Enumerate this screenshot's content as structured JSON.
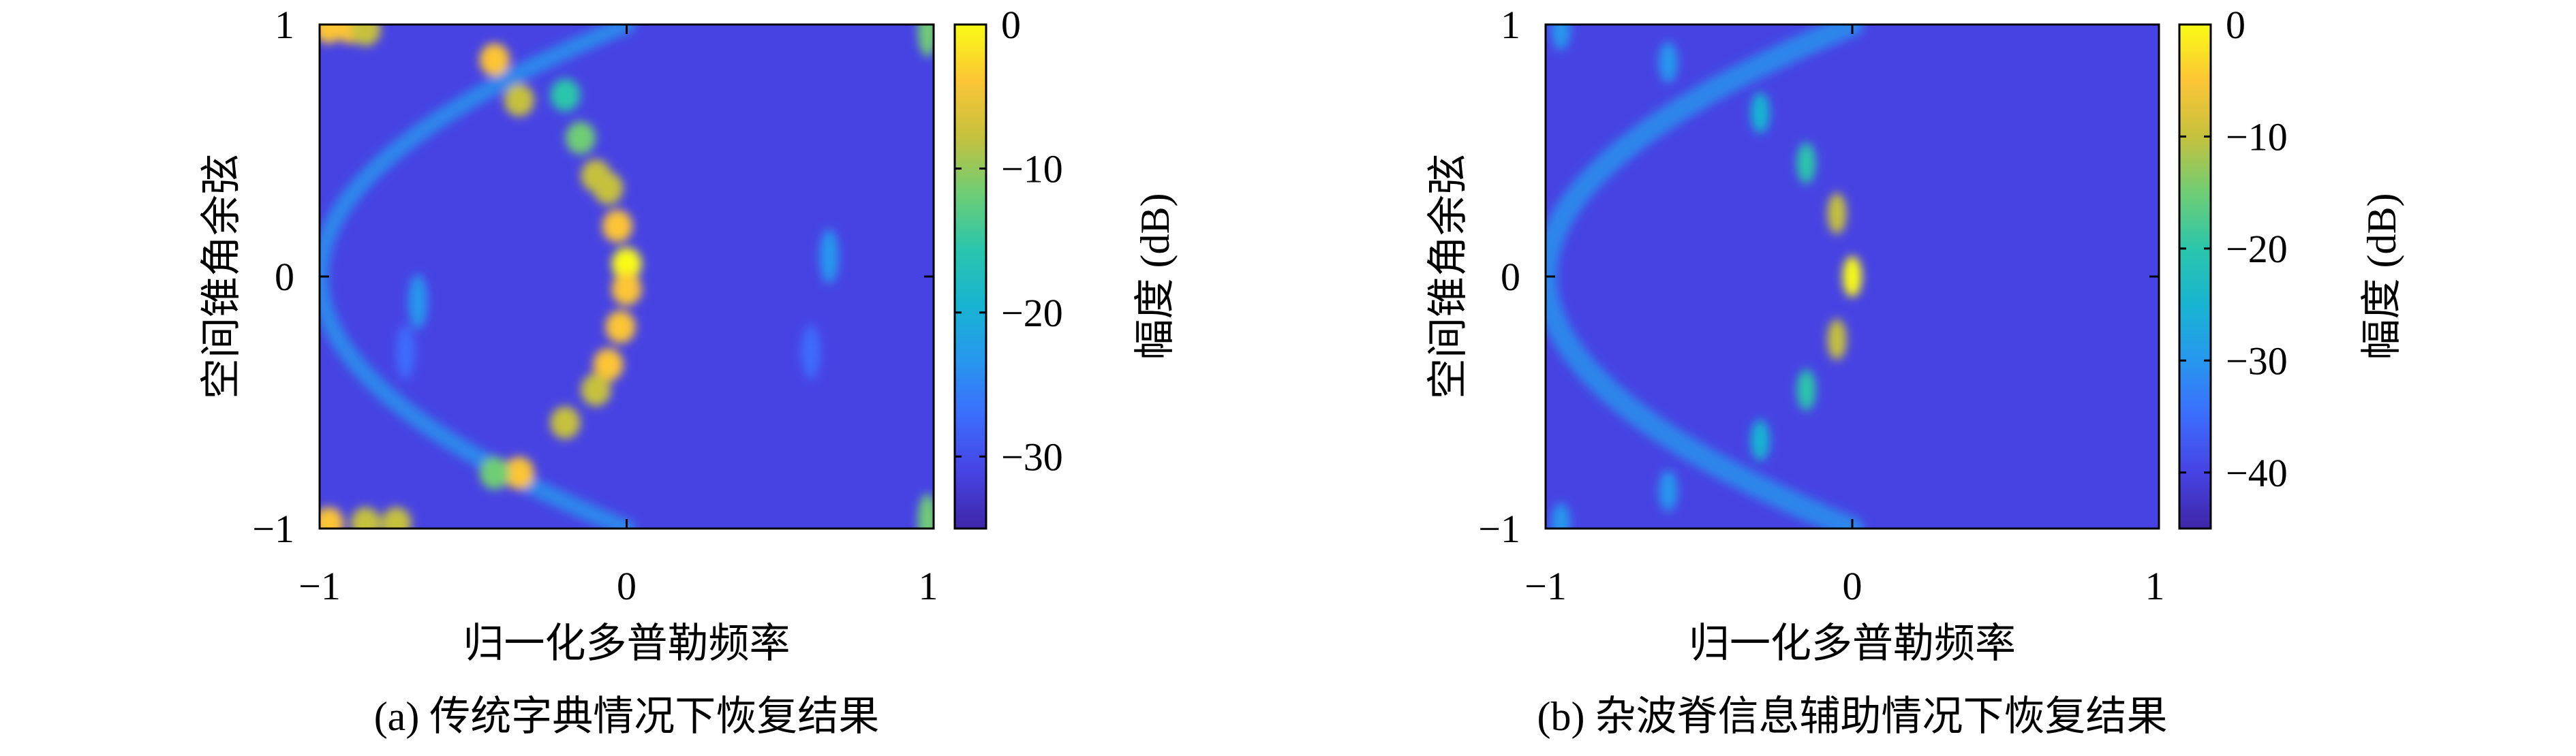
{
  "colormap": [
    "#3e26a8",
    "#4743e3",
    "#3c6cfd",
    "#2797ee",
    "#18b4d2",
    "#2bc6ab",
    "#6fcd74",
    "#c6c13d",
    "#fcc536",
    "#f9fb15"
  ],
  "chart_data": [
    {
      "type": "heatmap",
      "caption": "(a) 传统字典情况下恢复结果",
      "xlabel": "归一化多普勒频率",
      "ylabel": "空间锥角余弦",
      "xlim": [
        -1,
        1
      ],
      "ylim": [
        -1,
        1
      ],
      "xticks": [
        "−1",
        "0",
        "1"
      ],
      "yticks": [
        "−1",
        "0",
        "1"
      ],
      "colorbar": {
        "label": "幅度 (dB)",
        "range": [
          -35,
          0
        ],
        "ticks": [
          "0",
          "−10",
          "−20",
          "−30"
        ],
        "tick_values": [
          0,
          -10,
          -20,
          -30
        ]
      },
      "background_db": -32,
      "ridge": {
        "description_curve": "x = -(1 - y^2)",
        "points": [
          {
            "x": -0.97,
            "y": 0.99,
            "db": -3
          },
          {
            "x": -0.9,
            "y": 0.99,
            "db": -5
          },
          {
            "x": -0.85,
            "y": 0.98,
            "db": -8
          },
          {
            "x": -0.43,
            "y": 0.86,
            "db": -3
          },
          {
            "x": -0.35,
            "y": 0.7,
            "db": -8
          },
          {
            "x": -0.2,
            "y": 0.72,
            "db": -15
          },
          {
            "x": -0.15,
            "y": 0.55,
            "db": -10
          },
          {
            "x": -0.1,
            "y": 0.4,
            "db": -8
          },
          {
            "x": -0.06,
            "y": 0.35,
            "db": -6
          },
          {
            "x": -0.03,
            "y": 0.2,
            "db": -5
          },
          {
            "x": 0.0,
            "y": 0.05,
            "db": -1
          },
          {
            "x": 0.0,
            "y": -0.05,
            "db": -2
          },
          {
            "x": -0.02,
            "y": -0.2,
            "db": -4
          },
          {
            "x": -0.06,
            "y": -0.35,
            "db": -5
          },
          {
            "x": -0.1,
            "y": -0.45,
            "db": -9
          },
          {
            "x": -0.2,
            "y": -0.58,
            "db": -8
          },
          {
            "x": -0.35,
            "y": -0.78,
            "db": -4
          },
          {
            "x": -0.43,
            "y": -0.78,
            "db": -12
          },
          {
            "x": -0.97,
            "y": -0.98,
            "db": -4
          },
          {
            "x": -0.85,
            "y": -0.98,
            "db": -7
          },
          {
            "x": -0.75,
            "y": -0.98,
            "db": -9
          }
        ]
      },
      "spurs": [
        {
          "x": -0.68,
          "y": -0.1,
          "db": -23
        },
        {
          "x": -0.72,
          "y": -0.3,
          "db": -27
        },
        {
          "x": 0.66,
          "y": 0.08,
          "db": -23
        },
        {
          "x": 0.6,
          "y": -0.3,
          "db": -27
        },
        {
          "x": 0.98,
          "y": 0.98,
          "db": -12
        },
        {
          "x": 0.98,
          "y": -0.97,
          "db": -12
        }
      ]
    },
    {
      "type": "heatmap",
      "caption": "(b) 杂波脊信息辅助情况下恢复结果",
      "xlabel": "归一化多普勒频率",
      "ylabel": "空间锥角余弦",
      "xlim": [
        -1,
        1
      ],
      "ylim": [
        -1,
        1
      ],
      "xticks": [
        "−1",
        "0",
        "1"
      ],
      "yticks": [
        "−1",
        "0",
        "1"
      ],
      "colorbar": {
        "label": "幅度 (dB)",
        "range": [
          -45,
          0
        ],
        "ticks": [
          "0",
          "−10",
          "−20",
          "−30",
          "−40"
        ],
        "tick_values": [
          0,
          -10,
          -20,
          -30,
          -40
        ]
      },
      "background_db": -42,
      "ridge": {
        "description_curve": "x = -(1 - y^2)",
        "points": [
          {
            "x": -0.95,
            "y": 0.98,
            "db": -30
          },
          {
            "x": -0.6,
            "y": 0.85,
            "db": -28
          },
          {
            "x": -0.3,
            "y": 0.65,
            "db": -24
          },
          {
            "x": -0.15,
            "y": 0.45,
            "db": -18
          },
          {
            "x": -0.05,
            "y": 0.25,
            "db": -10
          },
          {
            "x": 0.0,
            "y": 0.0,
            "db": -1
          },
          {
            "x": -0.05,
            "y": -0.25,
            "db": -10
          },
          {
            "x": -0.15,
            "y": -0.45,
            "db": -18
          },
          {
            "x": -0.3,
            "y": -0.65,
            "db": -24
          },
          {
            "x": -0.6,
            "y": -0.85,
            "db": -30
          },
          {
            "x": -0.95,
            "y": -0.98,
            "db": -30
          }
        ]
      },
      "spurs": []
    }
  ]
}
